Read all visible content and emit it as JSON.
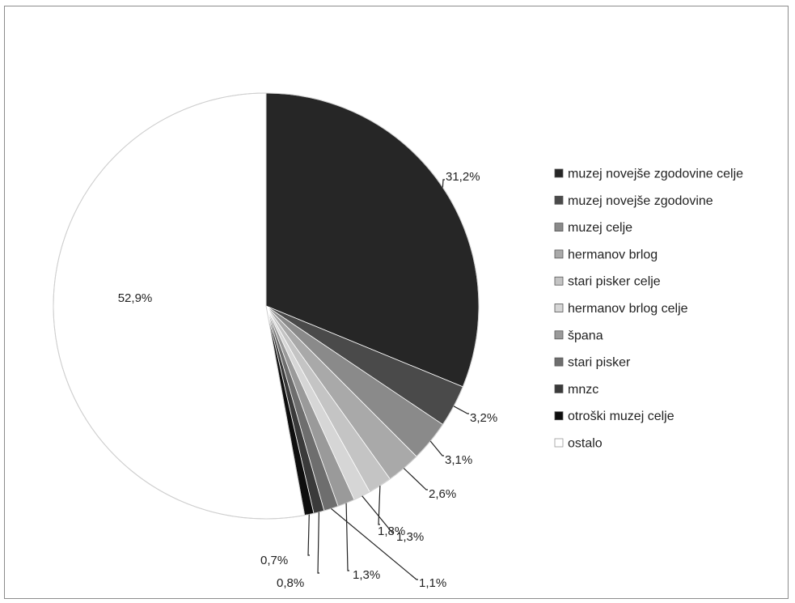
{
  "chart_data": {
    "type": "pie",
    "title": "",
    "legend_position": "right",
    "slices": [
      {
        "name": "muzej novejše zgodovine celje",
        "value": 31.2,
        "label": "31,2%",
        "color": "#262626"
      },
      {
        "name": "muzej novejše zgodovine",
        "value": 3.2,
        "label": "3,2%",
        "color": "#4a4a4a"
      },
      {
        "name": "muzej celje",
        "value": 3.1,
        "label": "3,1%",
        "color": "#8a8a8a"
      },
      {
        "name": "hermanov brlog",
        "value": 2.6,
        "label": "2,6%",
        "color": "#a9a9a9"
      },
      {
        "name": "stari pisker celje",
        "value": 1.8,
        "label": "1,8%",
        "color": "#c4c4c4"
      },
      {
        "name": "hermanov brlog celje",
        "value": 1.3,
        "label": "1,3%",
        "color": "#d6d6d6"
      },
      {
        "name": "špana",
        "value": 1.3,
        "label": "1,3%",
        "color": "#9a9a9a"
      },
      {
        "name": "stari pisker",
        "value": 1.1,
        "label": "1,1%",
        "color": "#6e6e6e"
      },
      {
        "name": "mnzc",
        "value": 0.8,
        "label": "0,8%",
        "color": "#3a3a3a"
      },
      {
        "name": "otroški muzej celje",
        "value": 0.7,
        "label": "0,7%",
        "color": "#0e0e0e"
      },
      {
        "name": "ostalo",
        "value": 52.9,
        "label": "52,9%",
        "color": "#ffffff"
      }
    ]
  }
}
